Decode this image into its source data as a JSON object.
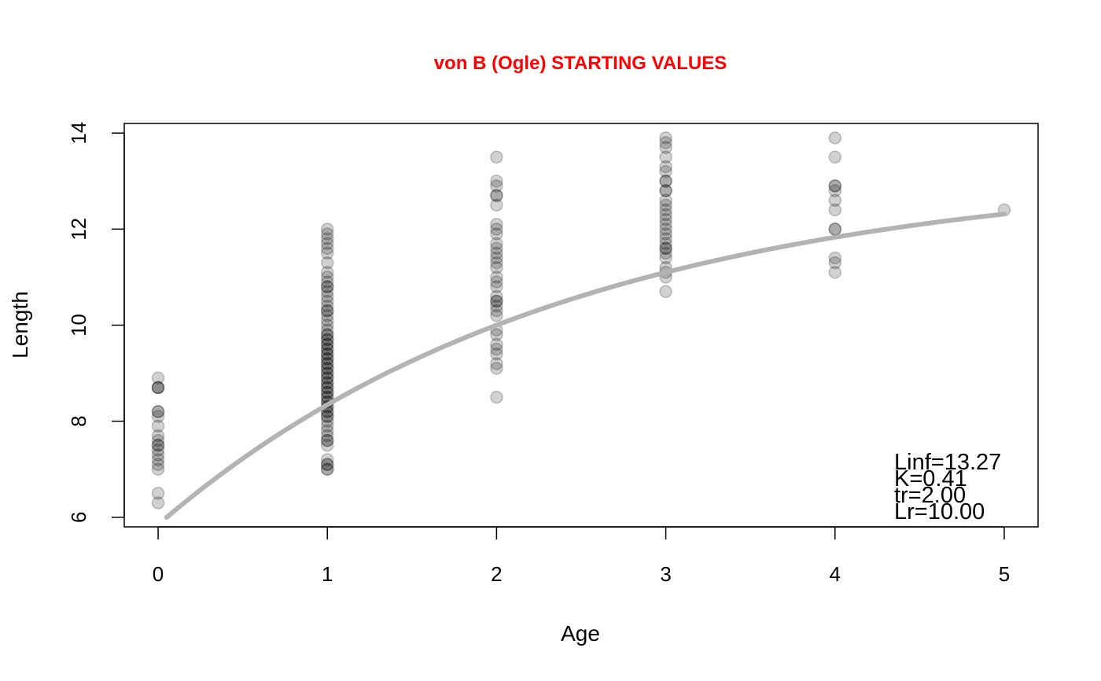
{
  "chart_data": {
    "type": "scatter",
    "title": "von B (Ogle) STARTING VALUES",
    "xlabel": "Age",
    "ylabel": "Length",
    "xlim": [
      -0.2,
      5.2
    ],
    "ylim": [
      5.8,
      14.2
    ],
    "x_ticks": [
      0,
      1,
      2,
      3,
      4,
      5
    ],
    "y_ticks": [
      6,
      8,
      10,
      12,
      14
    ],
    "grid": false,
    "legend": "none",
    "point_color": "#000000",
    "point_opacity": 0.18,
    "curve_color": "#b3b3b3",
    "title_color": "#ff0000",
    "points": [
      {
        "x": 0,
        "y": 8.9
      },
      {
        "x": 0,
        "y": 8.7
      },
      {
        "x": 0,
        "y": 8.7
      },
      {
        "x": 0,
        "y": 8.7
      },
      {
        "x": 0,
        "y": 8.2
      },
      {
        "x": 0,
        "y": 8.2
      },
      {
        "x": 0,
        "y": 8.1
      },
      {
        "x": 0,
        "y": 7.9
      },
      {
        "x": 0,
        "y": 7.7
      },
      {
        "x": 0,
        "y": 7.6
      },
      {
        "x": 0,
        "y": 7.5
      },
      {
        "x": 0,
        "y": 7.5
      },
      {
        "x": 0,
        "y": 7.4
      },
      {
        "x": 0,
        "y": 7.3
      },
      {
        "x": 0,
        "y": 7.2
      },
      {
        "x": 0,
        "y": 7.1
      },
      {
        "x": 0,
        "y": 7.0
      },
      {
        "x": 0,
        "y": 6.5
      },
      {
        "x": 0,
        "y": 6.3
      },
      {
        "x": 1,
        "y": 12.0
      },
      {
        "x": 1,
        "y": 11.9
      },
      {
        "x": 1,
        "y": 11.8
      },
      {
        "x": 1,
        "y": 11.7
      },
      {
        "x": 1,
        "y": 11.6
      },
      {
        "x": 1,
        "y": 11.5
      },
      {
        "x": 1,
        "y": 11.3
      },
      {
        "x": 1,
        "y": 11.1
      },
      {
        "x": 1,
        "y": 11.0
      },
      {
        "x": 1,
        "y": 10.9
      },
      {
        "x": 1,
        "y": 10.8
      },
      {
        "x": 1,
        "y": 10.8
      },
      {
        "x": 1,
        "y": 10.7
      },
      {
        "x": 1,
        "y": 10.6
      },
      {
        "x": 1,
        "y": 10.5
      },
      {
        "x": 1,
        "y": 10.4
      },
      {
        "x": 1,
        "y": 10.3
      },
      {
        "x": 1,
        "y": 10.3
      },
      {
        "x": 1,
        "y": 10.2
      },
      {
        "x": 1,
        "y": 10.1
      },
      {
        "x": 1,
        "y": 10.0
      },
      {
        "x": 1,
        "y": 9.9
      },
      {
        "x": 1,
        "y": 9.8
      },
      {
        "x": 1,
        "y": 9.8
      },
      {
        "x": 1,
        "y": 9.7
      },
      {
        "x": 1,
        "y": 9.7
      },
      {
        "x": 1,
        "y": 9.6
      },
      {
        "x": 1,
        "y": 9.6
      },
      {
        "x": 1,
        "y": 9.5
      },
      {
        "x": 1,
        "y": 9.5
      },
      {
        "x": 1,
        "y": 9.4
      },
      {
        "x": 1,
        "y": 9.4
      },
      {
        "x": 1,
        "y": 9.3
      },
      {
        "x": 1,
        "y": 9.3
      },
      {
        "x": 1,
        "y": 9.2
      },
      {
        "x": 1,
        "y": 9.2
      },
      {
        "x": 1,
        "y": 9.1
      },
      {
        "x": 1,
        "y": 9.1
      },
      {
        "x": 1,
        "y": 9.0
      },
      {
        "x": 1,
        "y": 9.0
      },
      {
        "x": 1,
        "y": 8.9
      },
      {
        "x": 1,
        "y": 8.9
      },
      {
        "x": 1,
        "y": 8.8
      },
      {
        "x": 1,
        "y": 8.8
      },
      {
        "x": 1,
        "y": 8.7
      },
      {
        "x": 1,
        "y": 8.7
      },
      {
        "x": 1,
        "y": 8.6
      },
      {
        "x": 1,
        "y": 8.6
      },
      {
        "x": 1,
        "y": 8.5
      },
      {
        "x": 1,
        "y": 8.5
      },
      {
        "x": 1,
        "y": 8.4
      },
      {
        "x": 1,
        "y": 8.4
      },
      {
        "x": 1,
        "y": 8.3
      },
      {
        "x": 1,
        "y": 8.3
      },
      {
        "x": 1,
        "y": 8.2
      },
      {
        "x": 1,
        "y": 8.2
      },
      {
        "x": 1,
        "y": 8.1
      },
      {
        "x": 1,
        "y": 8.1
      },
      {
        "x": 1,
        "y": 8.0
      },
      {
        "x": 1,
        "y": 7.9
      },
      {
        "x": 1,
        "y": 7.8
      },
      {
        "x": 1,
        "y": 7.7
      },
      {
        "x": 1,
        "y": 7.6
      },
      {
        "x": 1,
        "y": 7.6
      },
      {
        "x": 1,
        "y": 7.5
      },
      {
        "x": 1,
        "y": 7.2
      },
      {
        "x": 1,
        "y": 7.1
      },
      {
        "x": 1,
        "y": 7.1
      },
      {
        "x": 1,
        "y": 7.0
      },
      {
        "x": 1,
        "y": 7.0
      },
      {
        "x": 2,
        "y": 13.5
      },
      {
        "x": 2,
        "y": 13.0
      },
      {
        "x": 2,
        "y": 12.9
      },
      {
        "x": 2,
        "y": 12.7
      },
      {
        "x": 2,
        "y": 12.7
      },
      {
        "x": 2,
        "y": 12.5
      },
      {
        "x": 2,
        "y": 12.1
      },
      {
        "x": 2,
        "y": 12.0
      },
      {
        "x": 2,
        "y": 11.9
      },
      {
        "x": 2,
        "y": 11.7
      },
      {
        "x": 2,
        "y": 11.6
      },
      {
        "x": 2,
        "y": 11.5
      },
      {
        "x": 2,
        "y": 11.4
      },
      {
        "x": 2,
        "y": 11.3
      },
      {
        "x": 2,
        "y": 11.2
      },
      {
        "x": 2,
        "y": 11.0
      },
      {
        "x": 2,
        "y": 10.9
      },
      {
        "x": 2,
        "y": 10.8
      },
      {
        "x": 2,
        "y": 10.6
      },
      {
        "x": 2,
        "y": 10.5
      },
      {
        "x": 2,
        "y": 10.5
      },
      {
        "x": 2,
        "y": 10.4
      },
      {
        "x": 2,
        "y": 10.3
      },
      {
        "x": 2,
        "y": 10.2
      },
      {
        "x": 2,
        "y": 9.9
      },
      {
        "x": 2,
        "y": 9.8
      },
      {
        "x": 2,
        "y": 9.6
      },
      {
        "x": 2,
        "y": 9.5
      },
      {
        "x": 2,
        "y": 9.4
      },
      {
        "x": 2,
        "y": 9.2
      },
      {
        "x": 2,
        "y": 9.1
      },
      {
        "x": 2,
        "y": 8.5
      },
      {
        "x": 3,
        "y": 13.9
      },
      {
        "x": 3,
        "y": 13.8
      },
      {
        "x": 3,
        "y": 13.7
      },
      {
        "x": 3,
        "y": 13.5
      },
      {
        "x": 3,
        "y": 13.3
      },
      {
        "x": 3,
        "y": 13.2
      },
      {
        "x": 3,
        "y": 13.0
      },
      {
        "x": 3,
        "y": 13.0
      },
      {
        "x": 3,
        "y": 12.8
      },
      {
        "x": 3,
        "y": 12.8
      },
      {
        "x": 3,
        "y": 12.6
      },
      {
        "x": 3,
        "y": 12.5
      },
      {
        "x": 3,
        "y": 12.4
      },
      {
        "x": 3,
        "y": 12.3
      },
      {
        "x": 3,
        "y": 12.2
      },
      {
        "x": 3,
        "y": 12.1
      },
      {
        "x": 3,
        "y": 12.0
      },
      {
        "x": 3,
        "y": 11.9
      },
      {
        "x": 3,
        "y": 11.8
      },
      {
        "x": 3,
        "y": 11.7
      },
      {
        "x": 3,
        "y": 11.6
      },
      {
        "x": 3,
        "y": 11.6
      },
      {
        "x": 3,
        "y": 11.5
      },
      {
        "x": 3,
        "y": 11.4
      },
      {
        "x": 3,
        "y": 11.2
      },
      {
        "x": 3,
        "y": 11.1
      },
      {
        "x": 3,
        "y": 11.0
      },
      {
        "x": 3,
        "y": 10.7
      },
      {
        "x": 4,
        "y": 13.9
      },
      {
        "x": 4,
        "y": 13.5
      },
      {
        "x": 4,
        "y": 12.9
      },
      {
        "x": 4,
        "y": 12.9
      },
      {
        "x": 4,
        "y": 12.8
      },
      {
        "x": 4,
        "y": 12.6
      },
      {
        "x": 4,
        "y": 12.4
      },
      {
        "x": 4,
        "y": 12.0
      },
      {
        "x": 4,
        "y": 12.0
      },
      {
        "x": 4,
        "y": 11.4
      },
      {
        "x": 4,
        "y": 11.3
      },
      {
        "x": 4,
        "y": 11.1
      },
      {
        "x": 5,
        "y": 12.4
      }
    ],
    "curve": {
      "Linf": 13.27,
      "K": 0.41,
      "tr": 2.0,
      "Lr": 10.0,
      "x_range": [
        0.05,
        5
      ]
    },
    "annotations": [
      "Linf=13.27",
      "K=0.41",
      "tr=2.00",
      "Lr=10.00"
    ]
  }
}
